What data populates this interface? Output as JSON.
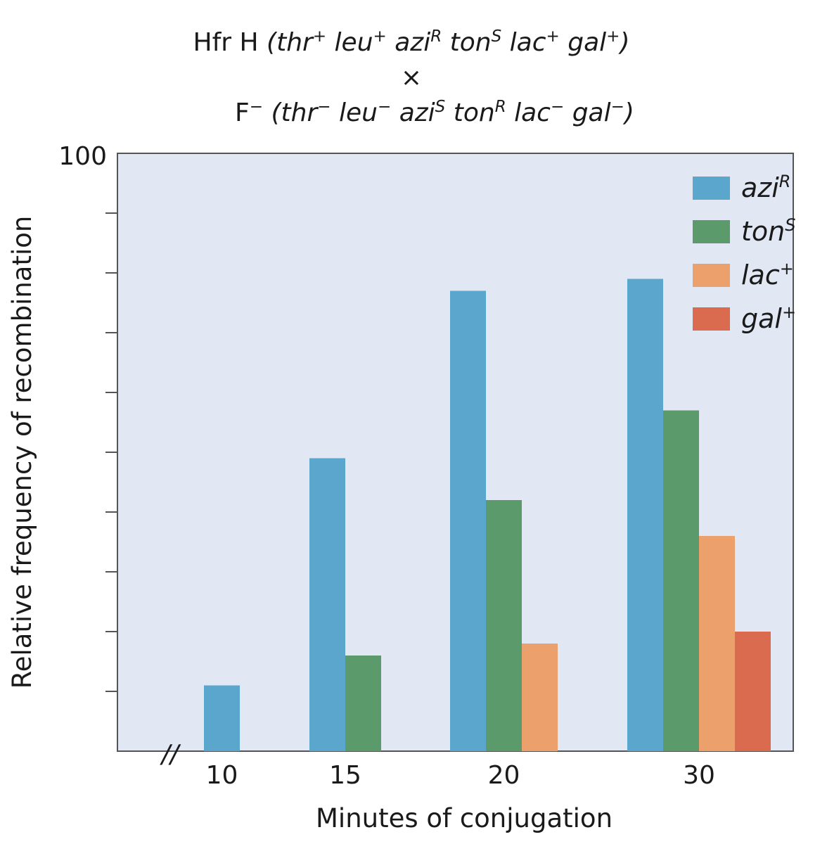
{
  "title": {
    "line1_prefix": "Hfr H",
    "line1_genotype": [
      {
        "gene": "thr",
        "sup": "+"
      },
      {
        "gene": "leu",
        "sup": "+"
      },
      {
        "gene": "azi",
        "sup": "R"
      },
      {
        "gene": "ton",
        "sup": "S"
      },
      {
        "gene": "lac",
        "sup": "+"
      },
      {
        "gene": "gal",
        "sup": "+"
      }
    ],
    "cross_symbol": "×",
    "line3_prefix": "F",
    "line3_prefix_sup": "−",
    "line3_genotype": [
      {
        "gene": "thr",
        "sup": "−"
      },
      {
        "gene": "leu",
        "sup": "−"
      },
      {
        "gene": "azi",
        "sup": "S"
      },
      {
        "gene": "ton",
        "sup": "R"
      },
      {
        "gene": "lac",
        "sup": "−"
      },
      {
        "gene": "gal",
        "sup": "−"
      }
    ]
  },
  "chart_data": {
    "type": "bar",
    "categories": [
      "10",
      "15",
      "20",
      "30"
    ],
    "series": [
      {
        "name": "azi",
        "sup": "R",
        "color": "#5ba6cc",
        "values": [
          11,
          49,
          77,
          79
        ]
      },
      {
        "name": "ton",
        "sup": "S",
        "color": "#5b9b6b",
        "values": [
          null,
          16,
          42,
          57
        ]
      },
      {
        "name": "lac",
        "sup": "+",
        "color": "#eca06b",
        "values": [
          null,
          null,
          18,
          36
        ]
      },
      {
        "name": "gal",
        "sup": "+",
        "color": "#db6b4f",
        "values": [
          null,
          null,
          null,
          20
        ]
      }
    ],
    "ylim": [
      0,
      100
    ],
    "y_tick_count": 10,
    "y_top_label": "100",
    "xlabel": "Minutes of conjugation",
    "ylabel": "Relative frequency of recombination",
    "axis_break": "//",
    "legend_position": "top-right",
    "plot_background": "#e2e7f4",
    "grid": false
  }
}
